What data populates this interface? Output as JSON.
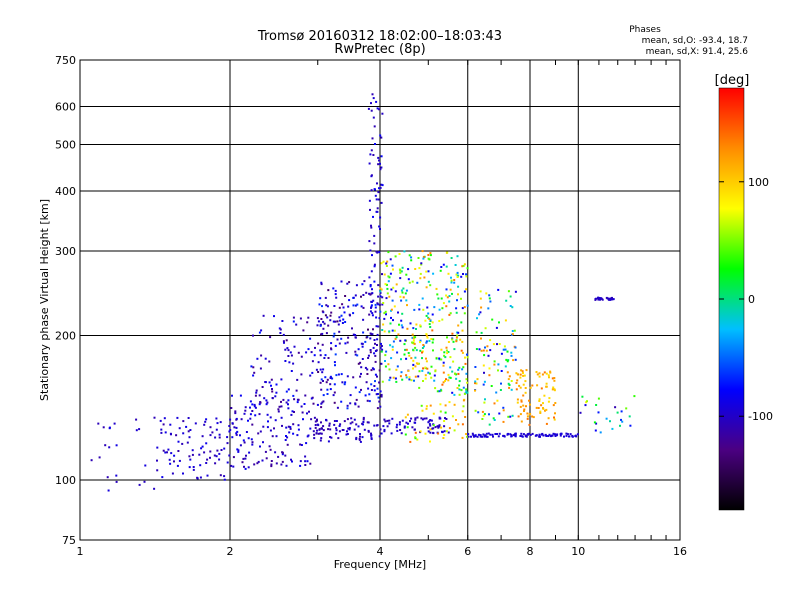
{
  "chart_data": {
    "type": "scatter",
    "title": "Tromsø 20160312 18:02:00–18:03:43",
    "subtitle": "RwPretec (8p)",
    "xlabel": "Frequency [MHz]",
    "ylabel": "Stationary phase Virtual Height [km]",
    "x_scale": "log",
    "y_scale": "log",
    "xlim": [
      1,
      16
    ],
    "ylim": [
      75,
      750
    ],
    "x_ticks": [
      1,
      2,
      4,
      6,
      8,
      10,
      16
    ],
    "x_tick_labels": [
      "1",
      "2",
      "4",
      "6",
      "8",
      "10",
      "16"
    ],
    "y_ticks": [
      75,
      100,
      200,
      300,
      400,
      500,
      600,
      750
    ],
    "y_tick_labels": [
      "75",
      "100",
      "200",
      "300",
      "400",
      "500",
      "600",
      "750"
    ],
    "grid": true,
    "annotation": {
      "title": "Phases",
      "line1": "mean, sd,O: -93.4, 18.7",
      "line2": "mean, sd,X:  91.4, 25.6"
    },
    "colorbar": {
      "label": "[deg]",
      "range": [
        -180,
        180
      ],
      "tick_values": [
        100,
        0,
        -100
      ],
      "tick_labels": [
        "100",
        "0",
        "-100"
      ],
      "colors": [
        "#000000",
        "#4b0082",
        "#0000ff",
        "#00bfff",
        "#00ff00",
        "#ffff00",
        "#ff8c00",
        "#ff0000"
      ]
    },
    "clusters": [
      {
        "f": [
          1.05,
          1.45
        ],
        "h": [
          95,
          135
        ],
        "phase": [
          -110,
          -85
        ],
        "n": 25
      },
      {
        "f": [
          1.45,
          2.0
        ],
        "h": [
          100,
          135
        ],
        "phase": [
          -115,
          -85
        ],
        "n": 90
      },
      {
        "f": [
          2.0,
          2.9
        ],
        "h": [
          105,
          150
        ],
        "phase": [
          -120,
          -80
        ],
        "n": 140
      },
      {
        "f": [
          2.2,
          3.2
        ],
        "h": [
          140,
          220
        ],
        "phase": [
          -130,
          -70
        ],
        "n": 110
      },
      {
        "f": [
          2.9,
          4.0
        ],
        "h": [
          120,
          135
        ],
        "phase": [
          -115,
          -90
        ],
        "n": 90
      },
      {
        "f": [
          3.0,
          4.0
        ],
        "h": [
          140,
          260
        ],
        "phase": [
          -140,
          -60
        ],
        "n": 200
      },
      {
        "f": [
          3.8,
          4.05
        ],
        "h": [
          140,
          640
        ],
        "phase": [
          -110,
          -80
        ],
        "n": 110
      },
      {
        "f": [
          4.0,
          5.0
        ],
        "h": [
          160,
          300
        ],
        "phase": [
          -100,
          140
        ],
        "n": 190
      },
      {
        "f": [
          4.0,
          5.5
        ],
        "h": [
          125,
          135
        ],
        "phase": [
          -110,
          -90
        ],
        "n": 70
      },
      {
        "f": [
          5.0,
          6.0
        ],
        "h": [
          150,
          300
        ],
        "phase": [
          -90,
          150
        ],
        "n": 150
      },
      {
        "f": [
          4.5,
          6.0
        ],
        "h": [
          120,
          200
        ],
        "phase": [
          20,
          150
        ],
        "n": 90
      },
      {
        "f": [
          6.2,
          7.5
        ],
        "h": [
          130,
          250
        ],
        "phase": [
          -105,
          140
        ],
        "n": 110
      },
      {
        "f": [
          6.0,
          8.0
        ],
        "h": [
          123,
          125
        ],
        "phase": [
          -100,
          -90
        ],
        "n": 60
      },
      {
        "f": [
          7.5,
          9.0
        ],
        "h": [
          130,
          170
        ],
        "phase": [
          90,
          140
        ],
        "n": 90
      },
      {
        "f": [
          8.0,
          10.0
        ],
        "h": [
          123,
          125
        ],
        "phase": [
          -100,
          -90
        ],
        "n": 45
      },
      {
        "f": [
          10.8,
          11.8
        ],
        "h": [
          237,
          240
        ],
        "phase": [
          -110,
          -95
        ],
        "n": 25
      },
      {
        "f": [
          10.0,
          13.0
        ],
        "h": [
          125,
          150
        ],
        "phase": [
          -110,
          120
        ],
        "n": 25
      }
    ]
  }
}
